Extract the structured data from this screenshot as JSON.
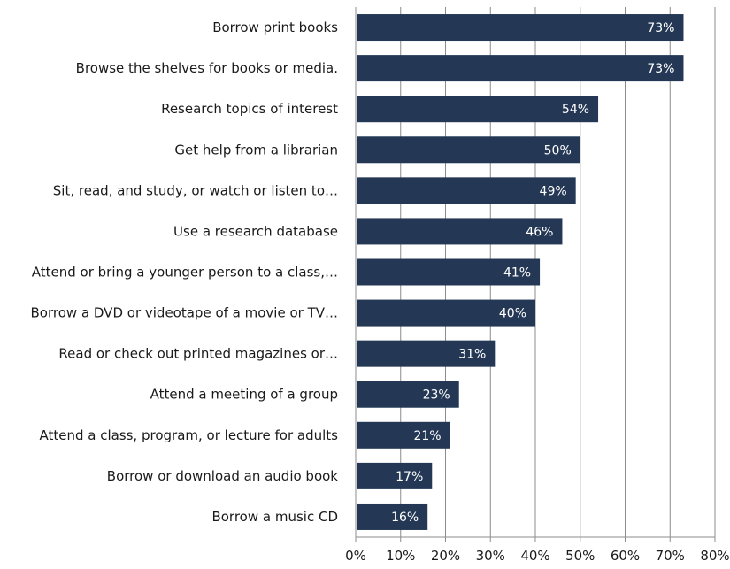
{
  "chart_data": {
    "type": "bar",
    "orientation": "horizontal",
    "categories": [
      "Borrow print books",
      "Browse the shelves for books or media.",
      "Research topics of interest",
      "Get help from a librarian",
      "Sit, read, and study, or watch or listen to…",
      "Use a research database",
      "Attend or bring a younger person to a class,…",
      "Borrow a DVD or videotape of a movie or TV…",
      "Read or check out printed magazines or…",
      "Attend a meeting of a group",
      "Attend a class, program, or lecture for adults",
      "Borrow or download an audio book",
      "Borrow a music CD"
    ],
    "values": [
      73,
      73,
      54,
      50,
      49,
      46,
      41,
      40,
      31,
      23,
      21,
      17,
      16
    ],
    "data_labels": [
      "73%",
      "73%",
      "54%",
      "50%",
      "49%",
      "46%",
      "41%",
      "40%",
      "31%",
      "23%",
      "21%",
      "17%",
      "16%"
    ],
    "x_ticks": [
      "0%",
      "10%",
      "20%",
      "30%",
      "40%",
      "50%",
      "60%",
      "70%",
      "80%"
    ],
    "xlim": [
      0,
      80
    ],
    "grid": "vertical",
    "legend": "none",
    "bar_color": "#243856",
    "grid_color": "#8c8c8c",
    "title": "",
    "xlabel": "",
    "ylabel": ""
  }
}
